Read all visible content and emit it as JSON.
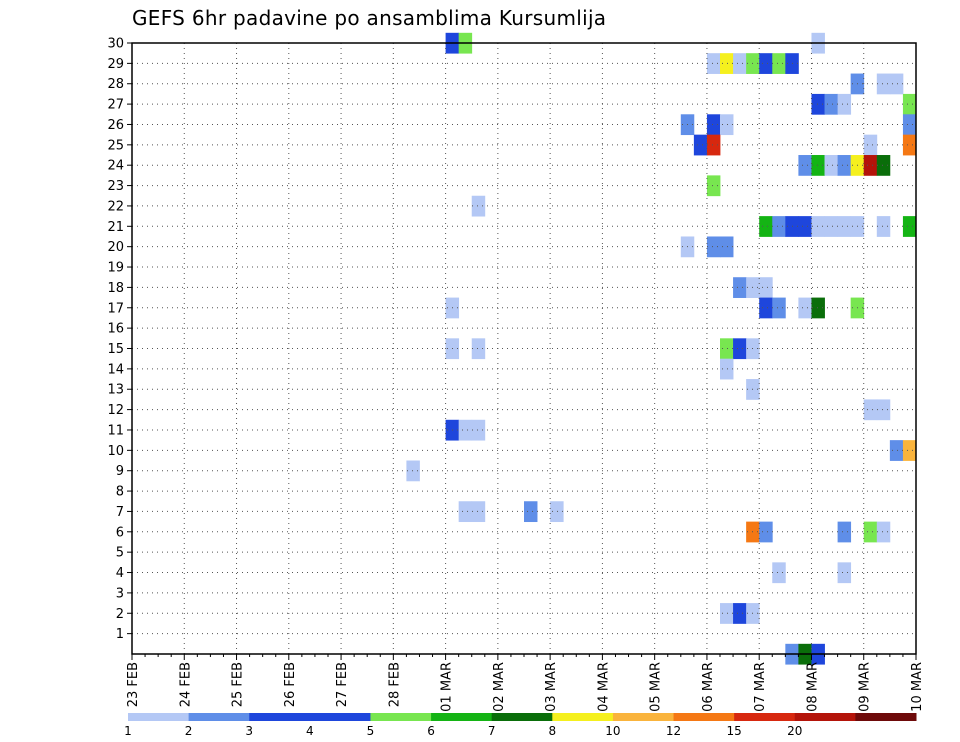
{
  "chart_data": {
    "type": "heatmap",
    "title": "GEFS 6hr padavine po ansamblima Kursumlija",
    "xlabel": "",
    "ylabel": "",
    "x_tick_labels": [
      "23 FEB",
      "24 FEB",
      "25 FEB",
      "26 FEB",
      "27 FEB",
      "28 FEB",
      "01 MAR",
      "02 MAR",
      "03 MAR",
      "04 MAR",
      "05 MAR",
      "06 MAR",
      "07 MAR",
      "08 MAR",
      "09 MAR",
      "10 MAR"
    ],
    "y_tick_labels": [
      "1",
      "2",
      "3",
      "4",
      "5",
      "6",
      "7",
      "8",
      "9",
      "10",
      "11",
      "12",
      "13",
      "14",
      "15",
      "16",
      "17",
      "18",
      "19",
      "20",
      "21",
      "22",
      "23",
      "24",
      "25",
      "26",
      "27",
      "28",
      "29",
      "30"
    ],
    "xlim": [
      0,
      60
    ],
    "ylim": [
      0,
      30
    ],
    "grid": true,
    "legend": {
      "position": "bottom",
      "labels": [
        "1",
        "2",
        "3",
        "4",
        "5",
        "6",
        "7",
        "8",
        "10",
        "12",
        "15",
        "20"
      ],
      "colors": [
        "#b4c8f5",
        "#5f8ee8",
        "#1e46dc",
        "#1e46dc",
        "#78e650",
        "#14b414",
        "#0a6e0a",
        "#f5f01e",
        "#fab43c",
        "#f57814",
        "#d7280f",
        "#b4140a",
        "#6e0a0a"
      ]
    },
    "x_unit": "6-hour steps from 23 FEB 00Z",
    "y_unit": "ensemble member",
    "cells": [
      {
        "m": 30,
        "s": 24,
        "v": 3
      },
      {
        "m": 30,
        "s": 25,
        "v": 5
      },
      {
        "m": 30,
        "s": 52,
        "v": 1
      },
      {
        "m": 29,
        "s": 44,
        "v": 1
      },
      {
        "m": 29,
        "s": 45,
        "v": 8
      },
      {
        "m": 29,
        "s": 46,
        "v": 1
      },
      {
        "m": 29,
        "s": 47,
        "v": 5
      },
      {
        "m": 29,
        "s": 48,
        "v": 3
      },
      {
        "m": 29,
        "s": 49,
        "v": 5
      },
      {
        "m": 29,
        "s": 50,
        "v": 3
      },
      {
        "m": 28,
        "s": 55,
        "v": 2
      },
      {
        "m": 28,
        "s": 57,
        "v": 1
      },
      {
        "m": 28,
        "s": 58,
        "v": 1
      },
      {
        "m": 27,
        "s": 52,
        "v": 3
      },
      {
        "m": 27,
        "s": 53,
        "v": 2
      },
      {
        "m": 27,
        "s": 54,
        "v": 1
      },
      {
        "m": 27,
        "s": 59,
        "v": 5
      },
      {
        "m": 26,
        "s": 42,
        "v": 2
      },
      {
        "m": 26,
        "s": 44,
        "v": 3
      },
      {
        "m": 26,
        "s": 45,
        "v": 1
      },
      {
        "m": 26,
        "s": 59,
        "v": 2
      },
      {
        "m": 25,
        "s": 43,
        "v": 3
      },
      {
        "m": 25,
        "s": 44,
        "v": 15
      },
      {
        "m": 25,
        "s": 56,
        "v": 1
      },
      {
        "m": 25,
        "s": 59,
        "v": 12
      },
      {
        "m": 24,
        "s": 51,
        "v": 2
      },
      {
        "m": 24,
        "s": 52,
        "v": 6
      },
      {
        "m": 24,
        "s": 53,
        "v": 1
      },
      {
        "m": 24,
        "s": 54,
        "v": 2
      },
      {
        "m": 24,
        "s": 55,
        "v": 8
      },
      {
        "m": 24,
        "s": 56,
        "v": 20
      },
      {
        "m": 24,
        "s": 57,
        "v": 7
      },
      {
        "m": 23,
        "s": 44,
        "v": 5
      },
      {
        "m": 22,
        "s": 26,
        "v": 1
      },
      {
        "m": 21,
        "s": 48,
        "v": 6
      },
      {
        "m": 21,
        "s": 49,
        "v": 2
      },
      {
        "m": 21,
        "s": 50,
        "v": 3
      },
      {
        "m": 21,
        "s": 51,
        "v": 3
      },
      {
        "m": 21,
        "s": 52,
        "v": 1
      },
      {
        "m": 21,
        "s": 53,
        "v": 1
      },
      {
        "m": 21,
        "s": 54,
        "v": 1
      },
      {
        "m": 21,
        "s": 55,
        "v": 1
      },
      {
        "m": 21,
        "s": 57,
        "v": 1
      },
      {
        "m": 21,
        "s": 59,
        "v": 6
      },
      {
        "m": 20,
        "s": 42,
        "v": 1
      },
      {
        "m": 20,
        "s": 44,
        "v": 2
      },
      {
        "m": 20,
        "s": 45,
        "v": 2
      },
      {
        "m": 18,
        "s": 46,
        "v": 2
      },
      {
        "m": 18,
        "s": 47,
        "v": 1
      },
      {
        "m": 18,
        "s": 48,
        "v": 1
      },
      {
        "m": 17,
        "s": 24,
        "v": 1
      },
      {
        "m": 17,
        "s": 48,
        "v": 3
      },
      {
        "m": 17,
        "s": 49,
        "v": 2
      },
      {
        "m": 17,
        "s": 51,
        "v": 1
      },
      {
        "m": 17,
        "s": 52,
        "v": 7
      },
      {
        "m": 17,
        "s": 55,
        "v": 5
      },
      {
        "m": 15,
        "s": 24,
        "v": 1
      },
      {
        "m": 15,
        "s": 26,
        "v": 1
      },
      {
        "m": 15,
        "s": 45,
        "v": 5
      },
      {
        "m": 15,
        "s": 46,
        "v": 3
      },
      {
        "m": 15,
        "s": 47,
        "v": 1
      },
      {
        "m": 14,
        "s": 45,
        "v": 1
      },
      {
        "m": 13,
        "s": 47,
        "v": 1
      },
      {
        "m": 12,
        "s": 56,
        "v": 1
      },
      {
        "m": 12,
        "s": 57,
        "v": 1
      },
      {
        "m": 11,
        "s": 24,
        "v": 3
      },
      {
        "m": 11,
        "s": 25,
        "v": 1
      },
      {
        "m": 11,
        "s": 26,
        "v": 1
      },
      {
        "m": 10,
        "s": 58,
        "v": 2
      },
      {
        "m": 10,
        "s": 59,
        "v": 10
      },
      {
        "m": 9,
        "s": 21,
        "v": 1
      },
      {
        "m": 7,
        "s": 25,
        "v": 1
      },
      {
        "m": 7,
        "s": 26,
        "v": 1
      },
      {
        "m": 7,
        "s": 30,
        "v": 2
      },
      {
        "m": 7,
        "s": 32,
        "v": 1
      },
      {
        "m": 6,
        "s": 47,
        "v": 12
      },
      {
        "m": 6,
        "s": 48,
        "v": 2
      },
      {
        "m": 6,
        "s": 54,
        "v": 2
      },
      {
        "m": 6,
        "s": 56,
        "v": 5
      },
      {
        "m": 6,
        "s": 57,
        "v": 1
      },
      {
        "m": 4,
        "s": 49,
        "v": 1
      },
      {
        "m": 4,
        "s": 54,
        "v": 1
      },
      {
        "m": 2,
        "s": 45,
        "v": 1
      },
      {
        "m": 2,
        "s": 46,
        "v": 3
      },
      {
        "m": 2,
        "s": 47,
        "v": 1
      },
      {
        "m": 0,
        "s": 50,
        "v": 2
      },
      {
        "m": 0,
        "s": 51,
        "v": 7
      },
      {
        "m": 0,
        "s": 52,
        "v": 3
      }
    ]
  }
}
